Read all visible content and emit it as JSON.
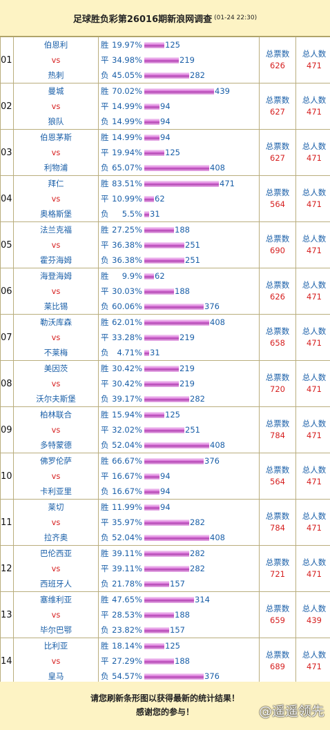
{
  "header": {
    "title": "足球胜负彩第26016期新浪网调查",
    "timestamp": "(01-24 22:30)"
  },
  "labels": {
    "win": "胜",
    "draw": "平",
    "loss": "负",
    "vs": "vs",
    "total_votes": "总票数",
    "total_people": "总人数"
  },
  "matches": [
    {
      "no": "01",
      "home": "伯恩利",
      "away": "热刺",
      "win_pct": "19.97%",
      "win": 125,
      "draw_pct": "34.98%",
      "draw": 219,
      "loss_pct": "45.05%",
      "loss": 282,
      "votes": "626",
      "people": "471"
    },
    {
      "no": "02",
      "home": "曼城",
      "away": "狼队",
      "win_pct": "70.02%",
      "win": 439,
      "draw_pct": "14.99%",
      "draw": 94,
      "loss_pct": "14.99%",
      "loss": 94,
      "votes": "627",
      "people": "471"
    },
    {
      "no": "03",
      "home": "伯恩茅斯",
      "away": "利物浦",
      "win_pct": "14.99%",
      "win": 94,
      "draw_pct": "19.94%",
      "draw": 125,
      "loss_pct": "65.07%",
      "loss": 408,
      "votes": "627",
      "people": "471"
    },
    {
      "no": "04",
      "home": "拜仁",
      "away": "奥格斯堡",
      "win_pct": "83.51%",
      "win": 471,
      "draw_pct": "10.99%",
      "draw": 62,
      "loss_pct": "5.5%",
      "loss": 31,
      "votes": "564",
      "people": "471"
    },
    {
      "no": "05",
      "home": "法兰克福",
      "away": "霍芬海姆",
      "win_pct": "27.25%",
      "win": 188,
      "draw_pct": "36.38%",
      "draw": 251,
      "loss_pct": "36.38%",
      "loss": 251,
      "votes": "690",
      "people": "471"
    },
    {
      "no": "06",
      "home": "海登海姆",
      "away": "莱比锡",
      "win_pct": "9.9%",
      "win": 62,
      "draw_pct": "30.03%",
      "draw": 188,
      "loss_pct": "60.06%",
      "loss": 376,
      "votes": "626",
      "people": "471"
    },
    {
      "no": "07",
      "home": "勒沃库森",
      "away": "不莱梅",
      "win_pct": "62.01%",
      "win": 408,
      "draw_pct": "33.28%",
      "draw": 219,
      "loss_pct": "4.71%",
      "loss": 31,
      "votes": "658",
      "people": "471"
    },
    {
      "no": "08",
      "home": "美因茨",
      "away": "沃尔夫斯堡",
      "win_pct": "30.42%",
      "win": 219,
      "draw_pct": "30.42%",
      "draw": 219,
      "loss_pct": "39.17%",
      "loss": 282,
      "votes": "720",
      "people": "471"
    },
    {
      "no": "09",
      "home": "柏林联合",
      "away": "多特蒙德",
      "win_pct": "15.94%",
      "win": 125,
      "draw_pct": "32.02%",
      "draw": 251,
      "loss_pct": "52.04%",
      "loss": 408,
      "votes": "784",
      "people": "471"
    },
    {
      "no": "10",
      "home": "佛罗伦萨",
      "away": "卡利亚里",
      "win_pct": "66.67%",
      "win": 376,
      "draw_pct": "16.67%",
      "draw": 94,
      "loss_pct": "16.67%",
      "loss": 94,
      "votes": "564",
      "people": "471"
    },
    {
      "no": "11",
      "home": "莱切",
      "away": "拉齐奥",
      "win_pct": "11.99%",
      "win": 94,
      "draw_pct": "35.97%",
      "draw": 282,
      "loss_pct": "52.04%",
      "loss": 408,
      "votes": "784",
      "people": "471"
    },
    {
      "no": "12",
      "home": "巴伦西亚",
      "away": "西班牙人",
      "win_pct": "39.11%",
      "win": 282,
      "draw_pct": "39.11%",
      "draw": 282,
      "loss_pct": "21.78%",
      "loss": 157,
      "votes": "721",
      "people": "471"
    },
    {
      "no": "13",
      "home": "塞维利亚",
      "away": "毕尔巴鄂",
      "win_pct": "47.65%",
      "win": 314,
      "draw_pct": "28.53%",
      "draw": 188,
      "loss_pct": "23.82%",
      "loss": 157,
      "votes": "659",
      "people": "439"
    },
    {
      "no": "14",
      "home": "比利亚",
      "away": "皇马",
      "win_pct": "18.14%",
      "win": 125,
      "draw_pct": "27.29%",
      "draw": 188,
      "loss_pct": "54.57%",
      "loss": 376,
      "votes": "689",
      "people": "471"
    }
  ],
  "footer": {
    "line1": "请您刷新条形图以获得最新的统计结果！",
    "line2": "感谢您的参与！",
    "watermark": "@遥遥领先"
  }
}
